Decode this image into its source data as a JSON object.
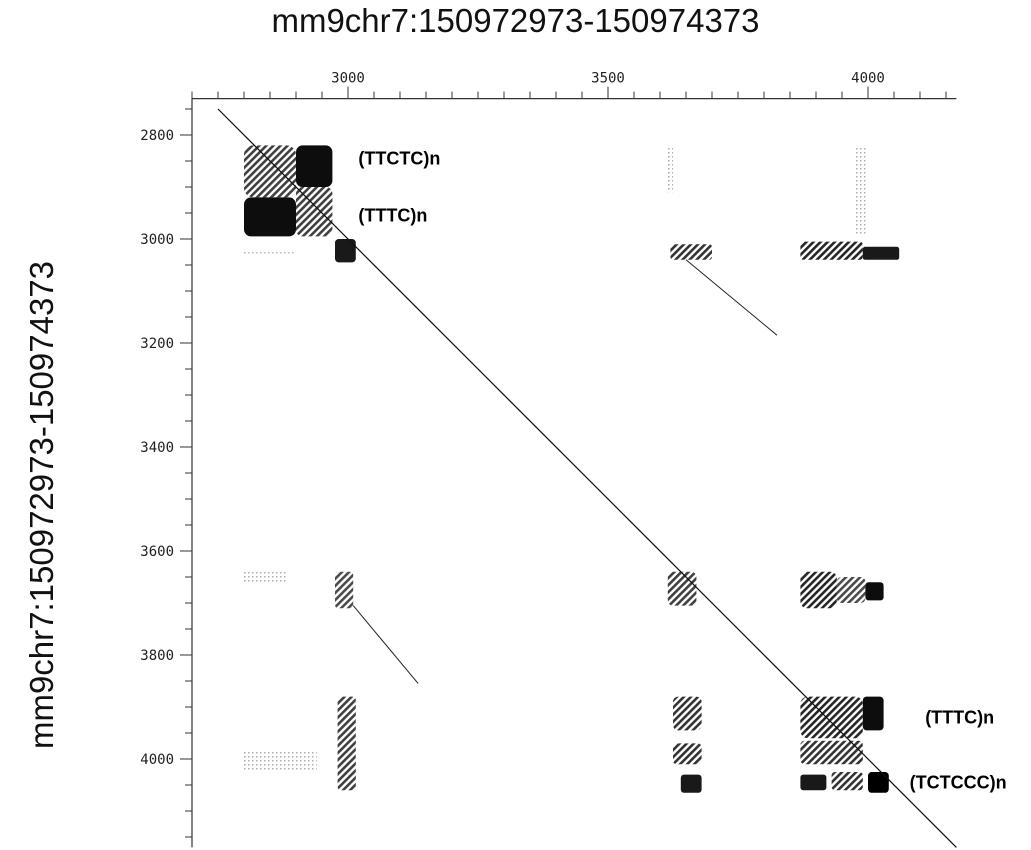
{
  "chart_data": {
    "type": "dotplot",
    "title": "mm9chr7:150972973-150974373",
    "ylabel": "mm9chr7:150972973-150974373",
    "xlim": [
      2700,
      4170
    ],
    "ylim": [
      2730,
      4170
    ],
    "x_ticks": [
      3000,
      3500,
      4000
    ],
    "y_ticks": [
      2800,
      3000,
      3200,
      3400,
      3600,
      3800,
      4000
    ],
    "main_diagonal": {
      "from": [
        2750,
        2750
      ],
      "to": [
        4170,
        4170
      ]
    },
    "blocks": [
      {
        "x": [
          2800,
          2900
        ],
        "y": [
          2820,
          2920
        ],
        "shade": 0.75
      },
      {
        "x": [
          2900,
          2970
        ],
        "y": [
          2820,
          2900
        ],
        "shade": 0.95
      },
      {
        "x": [
          2800,
          2900
        ],
        "y": [
          2920,
          2995
        ],
        "shade": 0.95
      },
      {
        "x": [
          2900,
          2970
        ],
        "y": [
          2900,
          2995
        ],
        "shade": 0.75
      },
      {
        "x": [
          2975,
          3015
        ],
        "y": [
          3000,
          3045
        ],
        "shade": 0.9
      },
      {
        "x": [
          3620,
          3700
        ],
        "y": [
          3010,
          3040
        ],
        "shade": 0.8
      },
      {
        "x": [
          3870,
          3990
        ],
        "y": [
          3005,
          3040
        ],
        "shade": 0.85
      },
      {
        "x": [
          3990,
          4060
        ],
        "y": [
          3015,
          3040
        ],
        "shade": 0.9
      },
      {
        "x": [
          2975,
          3010
        ],
        "y": [
          3640,
          3710
        ],
        "shade": 0.7
      },
      {
        "x": [
          3615,
          3670
        ],
        "y": [
          3640,
          3705
        ],
        "shade": 0.75
      },
      {
        "x": [
          3870,
          3940
        ],
        "y": [
          3640,
          3710
        ],
        "shade": 0.85
      },
      {
        "x": [
          3940,
          3995
        ],
        "y": [
          3650,
          3700
        ],
        "shade": 0.7
      },
      {
        "x": [
          3995,
          4030
        ],
        "y": [
          3660,
          3695
        ],
        "shade": 0.95
      },
      {
        "x": [
          2980,
          3015
        ],
        "y": [
          3880,
          4060
        ],
        "shade": 0.75
      },
      {
        "x": [
          3625,
          3680
        ],
        "y": [
          3880,
          3945
        ],
        "shade": 0.8
      },
      {
        "x": [
          3625,
          3680
        ],
        "y": [
          3970,
          4010
        ],
        "shade": 0.8
      },
      {
        "x": [
          3640,
          3680
        ],
        "y": [
          4030,
          4065
        ],
        "shade": 0.9
      },
      {
        "x": [
          3870,
          3990
        ],
        "y": [
          3880,
          3960
        ],
        "shade": 0.85
      },
      {
        "x": [
          3990,
          4030
        ],
        "y": [
          3880,
          3945
        ],
        "shade": 0.95
      },
      {
        "x": [
          3870,
          3990
        ],
        "y": [
          3965,
          4010
        ],
        "shade": 0.8
      },
      {
        "x": [
          3870,
          3920
        ],
        "y": [
          4030,
          4060
        ],
        "shade": 0.9
      },
      {
        "x": [
          3930,
          3990
        ],
        "y": [
          4025,
          4060
        ],
        "shade": 0.8
      },
      {
        "x": [
          4000,
          4040
        ],
        "y": [
          4025,
          4065
        ],
        "shade": 1.0
      }
    ],
    "faint_streaks": [
      {
        "x": [
          3615,
          3625
        ],
        "y": [
          2820,
          2910
        ],
        "shade": 0.3
      },
      {
        "x": [
          3975,
          3995
        ],
        "y": [
          2820,
          2990
        ],
        "shade": 0.3
      },
      {
        "x": [
          2800,
          2880
        ],
        "y": [
          3640,
          3660
        ],
        "shade": 0.3
      },
      {
        "x": [
          2800,
          2940
        ],
        "y": [
          3985,
          4025
        ],
        "shade": 0.3
      },
      {
        "x": [
          2800,
          2900
        ],
        "y": [
          3020,
          3030
        ],
        "shade": 0.2
      }
    ],
    "parallel_lines": [
      {
        "from": [
          3650,
          3040
        ],
        "to": [
          3825,
          3185
        ]
      },
      {
        "from": [
          3010,
          3705
        ],
        "to": [
          3135,
          3855
        ]
      }
    ],
    "annotations": [
      {
        "text": "(TTCTC)n",
        "x": 3020,
        "y": 2845
      },
      {
        "text": "(TTTC)n",
        "x": 3020,
        "y": 2955
      },
      {
        "text": "(TTTC)n",
        "x": 4110,
        "y": 3920
      },
      {
        "text": "(TCTCCC)n",
        "x": 4080,
        "y": 4045
      }
    ]
  }
}
